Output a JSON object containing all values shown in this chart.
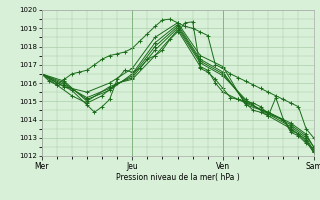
{
  "title": "",
  "xlabel": "Pression niveau de la mer( hPa )",
  "ylabel": "",
  "bg_color": "#d8f0d8",
  "grid_color": "#a0c8a0",
  "line_color": "#1a6b1a",
  "ylim": [
    1012,
    1020
  ],
  "yticks": [
    1012,
    1013,
    1014,
    1015,
    1016,
    1017,
    1018,
    1019,
    1020
  ],
  "xtick_labels": [
    "Mer",
    "Jeu",
    "Ven",
    "Sam"
  ],
  "xtick_positions": [
    0,
    48,
    96,
    144
  ],
  "x_total": 144,
  "series": [
    [
      0,
      1016.5,
      4,
      1016.1,
      8,
      1015.9,
      12,
      1016.2,
      16,
      1016.5,
      20,
      1016.6,
      24,
      1016.7,
      28,
      1017.0,
      32,
      1017.3,
      36,
      1017.5,
      40,
      1017.6,
      44,
      1017.7,
      48,
      1017.9,
      52,
      1018.3,
      56,
      1018.7,
      60,
      1019.1,
      64,
      1019.45,
      68,
      1019.5,
      72,
      1019.3,
      76,
      1019.1,
      80,
      1019.0,
      84,
      1018.8,
      88,
      1018.6,
      92,
      1017.0,
      96,
      1016.8,
      100,
      1016.5,
      104,
      1016.3,
      108,
      1016.1,
      112,
      1015.9,
      116,
      1015.7,
      120,
      1015.5,
      124,
      1015.3,
      128,
      1015.1,
      132,
      1014.9,
      136,
      1014.7,
      140,
      1013.5,
      144,
      1013.0
    ],
    [
      0,
      1016.5,
      12,
      1015.8,
      24,
      1015.5,
      36,
      1016.0,
      48,
      1016.8,
      60,
      1018.5,
      72,
      1019.3,
      84,
      1017.5,
      96,
      1016.9,
      108,
      1014.8,
      120,
      1014.4,
      132,
      1013.8,
      140,
      1013.2,
      144,
      1012.5
    ],
    [
      0,
      1016.5,
      12,
      1016.0,
      24,
      1015.1,
      36,
      1015.6,
      48,
      1016.5,
      60,
      1018.2,
      72,
      1019.2,
      84,
      1017.3,
      96,
      1016.6,
      108,
      1014.9,
      120,
      1014.4,
      132,
      1013.7,
      140,
      1013.1,
      144,
      1012.5
    ],
    [
      0,
      1016.5,
      12,
      1015.9,
      24,
      1015.2,
      36,
      1015.7,
      48,
      1016.4,
      60,
      1018.0,
      72,
      1019.1,
      84,
      1017.2,
      96,
      1016.5,
      108,
      1015.0,
      120,
      1014.3,
      132,
      1013.6,
      140,
      1013.0,
      144,
      1012.3
    ],
    [
      0,
      1016.5,
      12,
      1016.1,
      24,
      1015.0,
      36,
      1015.8,
      48,
      1016.3,
      60,
      1017.8,
      72,
      1019.0,
      84,
      1017.1,
      96,
      1016.4,
      108,
      1015.1,
      120,
      1014.2,
      132,
      1013.5,
      140,
      1012.9,
      144,
      1012.2
    ],
    [
      0,
      1016.5,
      8,
      1015.9,
      16,
      1015.3,
      24,
      1014.9,
      32,
      1015.3,
      40,
      1016.0,
      48,
      1016.2,
      60,
      1017.5,
      72,
      1018.9,
      84,
      1016.9,
      88,
      1016.7,
      92,
      1016.0,
      96,
      1015.5,
      104,
      1015.1,
      108,
      1015.0,
      112,
      1014.9,
      116,
      1014.7,
      120,
      1014.3,
      128,
      1014.0,
      132,
      1013.4,
      136,
      1013.2,
      140,
      1012.8,
      144,
      1012.2
    ],
    [
      0,
      1016.5,
      8,
      1016.0,
      16,
      1015.6,
      24,
      1014.8,
      28,
      1014.4,
      32,
      1014.7,
      36,
      1015.1,
      40,
      1016.2,
      44,
      1016.7,
      48,
      1016.6,
      52,
      1016.8,
      56,
      1017.3,
      60,
      1017.5,
      64,
      1017.8,
      68,
      1018.4,
      72,
      1018.8,
      76,
      1019.3,
      80,
      1019.35,
      84,
      1016.8,
      88,
      1016.6,
      92,
      1016.2,
      96,
      1015.7,
      100,
      1015.2,
      104,
      1015.1,
      108,
      1014.9,
      112,
      1014.5,
      116,
      1014.4,
      120,
      1014.2,
      124,
      1015.2,
      128,
      1014.0,
      132,
      1013.3,
      136,
      1013.1,
      140,
      1012.7,
      144,
      1012.4
    ]
  ]
}
